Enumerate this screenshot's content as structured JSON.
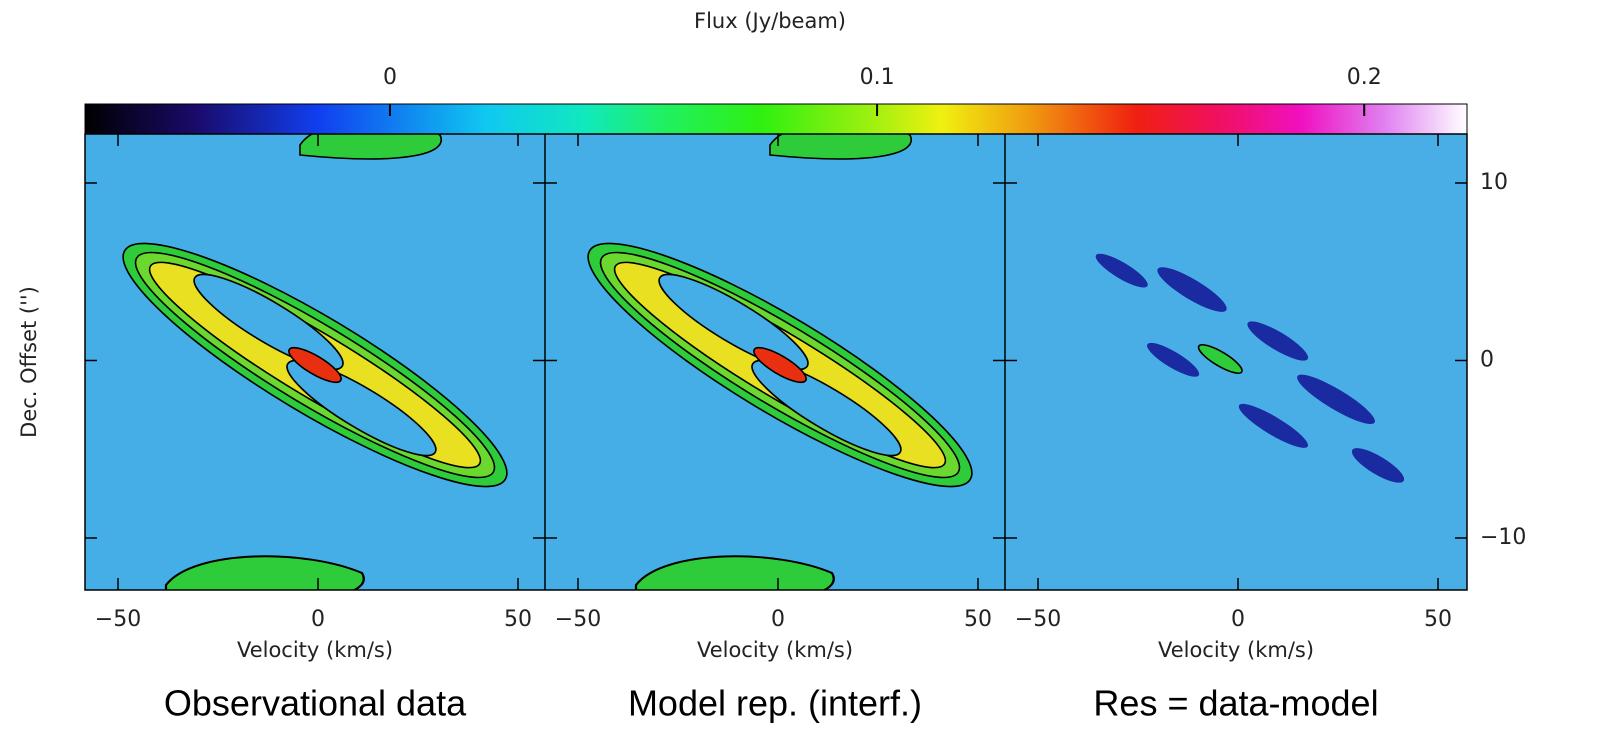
{
  "colorbar": {
    "title": "Flux (Jy/beam)",
    "lim": [
      -0.0626,
      0.2211
    ],
    "ticks": [
      0,
      0.1,
      0.2
    ]
  },
  "chart_data": [
    {
      "type": "pv-diagram",
      "ylabel": "Dec. Offset ('')",
      "xlabel": "Velocity (km/s)",
      "caption": "Observational data",
      "xlim": [
        -58.25,
        56.75
      ],
      "xticks": [
        {
          "value": -50,
          "label": "−50"
        },
        0,
        50
      ],
      "ylim": [
        -12.93,
        12.76
      ]
    },
    {
      "type": "pv-diagram",
      "xlabel": "Velocity (km/s)",
      "caption": "Model rep. (interf.)",
      "xlim": [
        -58.25,
        56.75
      ],
      "xticks": [
        {
          "value": -50,
          "label": "−50"
        },
        0,
        50
      ],
      "ylim": [
        -12.93,
        12.76
      ]
    },
    {
      "type": "pv-diagram",
      "xlabel": "Velocity (km/s)",
      "caption": "Res = data-model",
      "xlim": [
        -58.25,
        57.25
      ],
      "xticks": [
        {
          "value": -50,
          "label": "−50"
        },
        0,
        50
      ],
      "ylim": [
        -12.93,
        12.76
      ],
      "yticks": [
        {
          "value": -10,
          "label": "−10"
        },
        0,
        10
      ]
    }
  ]
}
